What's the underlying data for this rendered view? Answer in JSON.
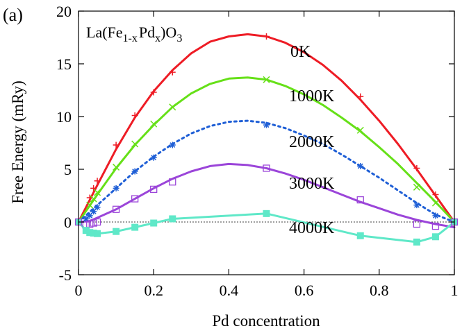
{
  "chart_data": {
    "type": "line",
    "panel_label": "(a)",
    "title": {
      "base": "La(Fe",
      "sub1": "1-x",
      "mid": "Pd",
      "sub2": "x",
      "end": ")O",
      "sub3": "3"
    },
    "xlabel": "Pd concentration",
    "ylabel": "Free Energy (mRy)",
    "xlim": [
      0,
      1
    ],
    "ylim": [
      -5,
      20
    ],
    "xticks": [
      0,
      0.2,
      0.4,
      0.6,
      0.8,
      1
    ],
    "xtick_labels": [
      "0",
      "0.2",
      "0.4",
      "0.6",
      "0.8",
      "1"
    ],
    "yticks": [
      -5,
      0,
      5,
      10,
      15,
      20
    ],
    "ytick_labels": [
      "-5",
      "0",
      "5",
      "10",
      "15",
      "20"
    ],
    "reference_line": 0,
    "series": [
      {
        "name": "0K",
        "color": "#ee1c25",
        "marker": "plus",
        "dashed": false,
        "curve": [
          [
            0,
            0
          ],
          [
            0.05,
            3.5
          ],
          [
            0.1,
            6.9
          ],
          [
            0.15,
            9.9
          ],
          [
            0.2,
            12.4
          ],
          [
            0.25,
            14.4
          ],
          [
            0.3,
            16.0
          ],
          [
            0.35,
            17.1
          ],
          [
            0.4,
            17.6
          ],
          [
            0.45,
            17.8
          ],
          [
            0.5,
            17.6
          ],
          [
            0.55,
            17.0
          ],
          [
            0.6,
            16.1
          ],
          [
            0.65,
            14.9
          ],
          [
            0.7,
            13.4
          ],
          [
            0.75,
            11.6
          ],
          [
            0.8,
            9.6
          ],
          [
            0.85,
            7.4
          ],
          [
            0.9,
            5.0
          ],
          [
            0.95,
            2.5
          ],
          [
            1,
            0
          ]
        ],
        "points": [
          [
            0.03,
            2.3
          ],
          [
            0.04,
            3.2
          ],
          [
            0.05,
            3.9
          ],
          [
            0.1,
            7.3
          ],
          [
            0.15,
            10.1
          ],
          [
            0.2,
            12.3
          ],
          [
            0.25,
            14.2
          ],
          [
            0.5,
            17.6
          ],
          [
            0.75,
            11.9
          ],
          [
            0.9,
            5.1
          ],
          [
            0.95,
            2.6
          ]
        ]
      },
      {
        "name": "1000K",
        "color": "#66e018",
        "marker": "cross",
        "dashed": false,
        "curve": [
          [
            0,
            0
          ],
          [
            0.05,
            2.6
          ],
          [
            0.1,
            5.1
          ],
          [
            0.15,
            7.3
          ],
          [
            0.2,
            9.2
          ],
          [
            0.25,
            10.9
          ],
          [
            0.3,
            12.2
          ],
          [
            0.35,
            13.1
          ],
          [
            0.4,
            13.6
          ],
          [
            0.45,
            13.7
          ],
          [
            0.5,
            13.5
          ],
          [
            0.55,
            12.9
          ],
          [
            0.6,
            12.1
          ],
          [
            0.65,
            11.1
          ],
          [
            0.7,
            9.9
          ],
          [
            0.75,
            8.6
          ],
          [
            0.8,
            7.1
          ],
          [
            0.85,
            5.5
          ],
          [
            0.9,
            3.7
          ],
          [
            0.95,
            1.9
          ],
          [
            1,
            0
          ]
        ],
        "points": [
          [
            0.03,
            1.6
          ],
          [
            0.04,
            2.2
          ],
          [
            0.05,
            2.8
          ],
          [
            0.1,
            5.2
          ],
          [
            0.15,
            7.4
          ],
          [
            0.2,
            9.3
          ],
          [
            0.25,
            10.9
          ],
          [
            0.5,
            13.5
          ],
          [
            0.75,
            8.7
          ],
          [
            0.9,
            3.3
          ],
          [
            0.95,
            1.8
          ]
        ]
      },
      {
        "name": "2000K",
        "color": "#1f5fd6",
        "marker": "star",
        "dashed": true,
        "curve": [
          [
            0,
            0
          ],
          [
            0.05,
            1.6
          ],
          [
            0.1,
            3.2
          ],
          [
            0.15,
            4.8
          ],
          [
            0.2,
            6.2
          ],
          [
            0.25,
            7.4
          ],
          [
            0.3,
            8.4
          ],
          [
            0.35,
            9.1
          ],
          [
            0.4,
            9.5
          ],
          [
            0.45,
            9.6
          ],
          [
            0.5,
            9.4
          ],
          [
            0.55,
            8.9
          ],
          [
            0.6,
            8.2
          ],
          [
            0.65,
            7.4
          ],
          [
            0.7,
            6.4
          ],
          [
            0.75,
            5.3
          ],
          [
            0.8,
            4.2
          ],
          [
            0.85,
            3.0
          ],
          [
            0.9,
            1.8
          ],
          [
            0.95,
            0.7
          ],
          [
            1,
            0
          ]
        ],
        "points": [
          [
            0.02,
            0.3
          ],
          [
            0.03,
            0.6
          ],
          [
            0.04,
            1.0
          ],
          [
            0.05,
            1.4
          ],
          [
            0.1,
            3.2
          ],
          [
            0.15,
            4.8
          ],
          [
            0.2,
            6.1
          ],
          [
            0.25,
            7.3
          ],
          [
            0.5,
            9.2
          ],
          [
            0.75,
            5.3
          ],
          [
            0.9,
            1.6
          ],
          [
            0.95,
            0.6
          ]
        ]
      },
      {
        "name": "3000K",
        "color": "#9b45d9",
        "marker": "square-open",
        "dashed": false,
        "curve": [
          [
            0,
            0
          ],
          [
            0.03,
            0.1
          ],
          [
            0.05,
            0.4
          ],
          [
            0.1,
            1.2
          ],
          [
            0.15,
            2.2
          ],
          [
            0.2,
            3.2
          ],
          [
            0.25,
            4.1
          ],
          [
            0.3,
            4.8
          ],
          [
            0.35,
            5.3
          ],
          [
            0.4,
            5.5
          ],
          [
            0.45,
            5.4
          ],
          [
            0.5,
            5.1
          ],
          [
            0.55,
            4.6
          ],
          [
            0.6,
            4.0
          ],
          [
            0.65,
            3.3
          ],
          [
            0.7,
            2.6
          ],
          [
            0.75,
            1.9
          ],
          [
            0.8,
            1.3
          ],
          [
            0.85,
            0.7
          ],
          [
            0.9,
            0.2
          ],
          [
            0.95,
            -0.2
          ],
          [
            1,
            -0.5
          ]
        ],
        "points": [
          [
            0.02,
            -0.3
          ],
          [
            0.03,
            -0.2
          ],
          [
            0.04,
            -0.1
          ],
          [
            0.05,
            0.0
          ],
          [
            0.1,
            1.2
          ],
          [
            0.15,
            2.2
          ],
          [
            0.2,
            3.1
          ],
          [
            0.25,
            3.8
          ],
          [
            0.5,
            5.1
          ],
          [
            0.75,
            2.1
          ],
          [
            0.9,
            -0.2
          ],
          [
            0.95,
            -0.4
          ]
        ]
      },
      {
        "name": "4000K",
        "color": "#5fe8c8",
        "marker": "square-filled",
        "dashed": false,
        "curve": [
          [
            0,
            0
          ],
          [
            0.02,
            -0.8
          ],
          [
            0.03,
            -1.0
          ],
          [
            0.04,
            -1.05
          ],
          [
            0.05,
            -1.1
          ],
          [
            0.1,
            -0.9
          ],
          [
            0.15,
            -0.5
          ],
          [
            0.2,
            -0.1
          ],
          [
            0.25,
            0.3
          ],
          [
            0.5,
            0.8
          ],
          [
            0.75,
            -1.3
          ],
          [
            0.9,
            -1.9
          ],
          [
            0.95,
            -1.4
          ],
          [
            1,
            0
          ]
        ],
        "points": [
          [
            0.02,
            -0.8
          ],
          [
            0.03,
            -1.0
          ],
          [
            0.04,
            -1.05
          ],
          [
            0.05,
            -1.1
          ],
          [
            0.1,
            -0.9
          ],
          [
            0.15,
            -0.5
          ],
          [
            0.2,
            -0.1
          ],
          [
            0.25,
            0.3
          ],
          [
            0.5,
            0.8
          ],
          [
            0.75,
            -1.3
          ],
          [
            0.9,
            -1.9
          ],
          [
            0.95,
            -1.4
          ]
        ]
      }
    ],
    "endpoint_markers": [
      [
        0,
        0
      ],
      [
        1,
        0
      ]
    ]
  }
}
